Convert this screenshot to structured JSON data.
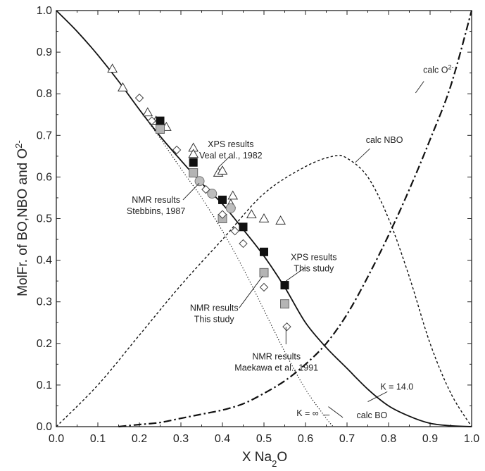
{
  "chart_data": {
    "type": "scatter",
    "xlabel": {
      "pre": "X Na",
      "sub": "2",
      "post": "O"
    },
    "ylabel": {
      "pre": "MolFr. of BO,NBO and O",
      "sup": "2-"
    },
    "xlim": [
      0.0,
      1.0
    ],
    "ylim": [
      0.0,
      1.0
    ],
    "x_ticks": [
      "0.0",
      "0.1",
      "0.2",
      "0.3",
      "0.4",
      "0.5",
      "0.6",
      "0.7",
      "0.8",
      "0.9",
      "1.0"
    ],
    "y_ticks": [
      "0.0",
      "0.1",
      "0.2",
      "0.3",
      "0.4",
      "0.5",
      "0.6",
      "0.7",
      "0.8",
      "0.9",
      "1.0"
    ],
    "grid": false,
    "curves": [
      {
        "name": "calc BO (K = 14.0)",
        "style": "solid",
        "x": [
          0.0,
          0.05,
          0.1,
          0.15,
          0.2,
          0.25,
          0.3,
          0.35,
          0.4,
          0.45,
          0.5,
          0.55,
          0.6,
          0.65,
          0.7,
          0.75,
          0.8,
          0.85,
          0.9,
          0.95,
          1.0
        ],
        "y": [
          1.0,
          0.95,
          0.893,
          0.83,
          0.762,
          0.698,
          0.64,
          0.585,
          0.535,
          0.474,
          0.41,
          0.335,
          0.25,
          0.19,
          0.14,
          0.09,
          0.05,
          0.025,
          0.008,
          0.002,
          0.0
        ]
      },
      {
        "name": "K = ∞",
        "style": "dotted",
        "x": [
          0.0,
          0.05,
          0.1,
          0.15,
          0.2,
          0.25,
          0.3,
          0.35,
          0.4,
          0.45,
          0.5,
          0.55,
          0.6,
          0.65,
          0.667
        ],
        "y": [
          1.0,
          0.95,
          0.893,
          0.83,
          0.762,
          0.693,
          0.62,
          0.55,
          0.47,
          0.38,
          0.28,
          0.18,
          0.09,
          0.02,
          0.0
        ]
      },
      {
        "name": "calc NBO",
        "style": "dashed",
        "x": [
          0.0,
          0.1,
          0.2,
          0.3,
          0.4,
          0.5,
          0.6,
          0.667,
          0.7,
          0.75,
          0.8,
          0.85,
          0.9,
          0.95,
          1.0
        ],
        "y": [
          0.0,
          0.1,
          0.22,
          0.34,
          0.45,
          0.56,
          0.625,
          0.65,
          0.645,
          0.6,
          0.5,
          0.36,
          0.2,
          0.08,
          0.0
        ]
      },
      {
        "name": "calc O2-",
        "style": "dashdot",
        "x": [
          0.15,
          0.2,
          0.25,
          0.3,
          0.35,
          0.4,
          0.45,
          0.5,
          0.55,
          0.6,
          0.65,
          0.7,
          0.75,
          0.8,
          0.85,
          0.9,
          0.95,
          1.0
        ],
        "y": [
          0.0,
          0.005,
          0.01,
          0.02,
          0.03,
          0.04,
          0.055,
          0.08,
          0.11,
          0.15,
          0.2,
          0.27,
          0.36,
          0.46,
          0.57,
          0.69,
          0.82,
          1.0
        ]
      }
    ],
    "series": [
      {
        "name": "XPS results Veal et al., 1982",
        "marker": "triangle-open",
        "points": [
          [
            0.135,
            0.86
          ],
          [
            0.16,
            0.815
          ],
          [
            0.22,
            0.755
          ],
          [
            0.24,
            0.735
          ],
          [
            0.255,
            0.725
          ],
          [
            0.265,
            0.72
          ],
          [
            0.33,
            0.67
          ],
          [
            0.33,
            0.655
          ],
          [
            0.39,
            0.61
          ],
          [
            0.4,
            0.615
          ],
          [
            0.42,
            0.535
          ],
          [
            0.425,
            0.555
          ],
          [
            0.47,
            0.51
          ],
          [
            0.5,
            0.5
          ],
          [
            0.54,
            0.495
          ]
        ]
      },
      {
        "name": "XPS results This study",
        "marker": "square-filled",
        "points": [
          [
            0.25,
            0.735
          ],
          [
            0.33,
            0.635
          ],
          [
            0.4,
            0.545
          ],
          [
            0.45,
            0.48
          ],
          [
            0.5,
            0.42
          ],
          [
            0.55,
            0.34
          ]
        ]
      },
      {
        "name": "NMR results This study",
        "marker": "square-gray",
        "points": [
          [
            0.25,
            0.715
          ],
          [
            0.33,
            0.61
          ],
          [
            0.4,
            0.5
          ],
          [
            0.5,
            0.37
          ],
          [
            0.55,
            0.295
          ]
        ]
      },
      {
        "name": "NMR results Stebbins, 1987",
        "marker": "circle-gray",
        "points": [
          [
            0.345,
            0.59
          ],
          [
            0.375,
            0.56
          ],
          [
            0.42,
            0.525
          ]
        ]
      },
      {
        "name": "NMR results Maekawa et al., 1991",
        "marker": "diamond-open",
        "points": [
          [
            0.2,
            0.79
          ],
          [
            0.23,
            0.735
          ],
          [
            0.29,
            0.665
          ],
          [
            0.36,
            0.57
          ],
          [
            0.4,
            0.51
          ],
          [
            0.43,
            0.47
          ],
          [
            0.45,
            0.44
          ],
          [
            0.5,
            0.335
          ],
          [
            0.555,
            0.24
          ]
        ]
      }
    ],
    "annotations": [
      {
        "lines": [
          "XPS results",
          "Veal et al., 1982"
        ],
        "pos": [
          0.42,
          0.672
        ],
        "target": [
          0.39,
          0.623
        ],
        "anchor": [
          0.416,
          0.648
        ]
      },
      {
        "lines": [
          "NMR results",
          "Stebbins, 1987"
        ],
        "pos": [
          0.24,
          0.538
        ],
        "target": [
          0.344,
          0.585
        ],
        "anchor": [
          0.305,
          0.545
        ]
      },
      {
        "lines": [
          "XPS results",
          "This study"
        ],
        "pos": [
          0.62,
          0.4
        ],
        "target": [
          0.553,
          0.35
        ],
        "anchor": [
          0.6,
          0.383
        ]
      },
      {
        "lines": [
          "NMR results",
          "This study"
        ],
        "pos": [
          0.38,
          0.278
        ],
        "target": [
          0.497,
          0.362
        ],
        "anchor": [
          0.44,
          0.285
        ]
      },
      {
        "lines": [
          "NMR results",
          "Maekawa et al., 1991"
        ],
        "pos": [
          0.53,
          0.162
        ],
        "target": [
          0.553,
          0.24
        ],
        "anchor": [
          0.553,
          0.198
        ]
      },
      {
        "lines": [
          "calc NBO"
        ],
        "pos": [
          0.79,
          0.682
        ],
        "target": [
          0.72,
          0.635
        ],
        "anchor": [
          0.755,
          0.668
        ]
      },
      {
        "lines": [
          "calc O",
          "2-"
        ],
        "pos": [
          0.92,
          0.85
        ],
        "target": [
          0.865,
          0.802
        ],
        "anchor": [
          0.885,
          0.83
        ],
        "sup": true
      },
      {
        "lines": [
          "K = 14.0"
        ],
        "pos": [
          0.82,
          0.089
        ],
        "target": [
          0.75,
          0.06
        ],
        "anchor": [
          0.797,
          0.084
        ]
      },
      {
        "lines": [
          "K = ∞"
        ],
        "pos": [
          0.605,
          0.025
        ],
        "target": [
          0.658,
          0.028
        ],
        "anchor": [
          0.642,
          0.028
        ]
      },
      {
        "lines": [
          "calc BO"
        ],
        "pos": [
          0.76,
          0.02
        ],
        "target": [
          0.655,
          0.048
        ],
        "anchor": [
          0.69,
          0.022
        ]
      }
    ]
  }
}
